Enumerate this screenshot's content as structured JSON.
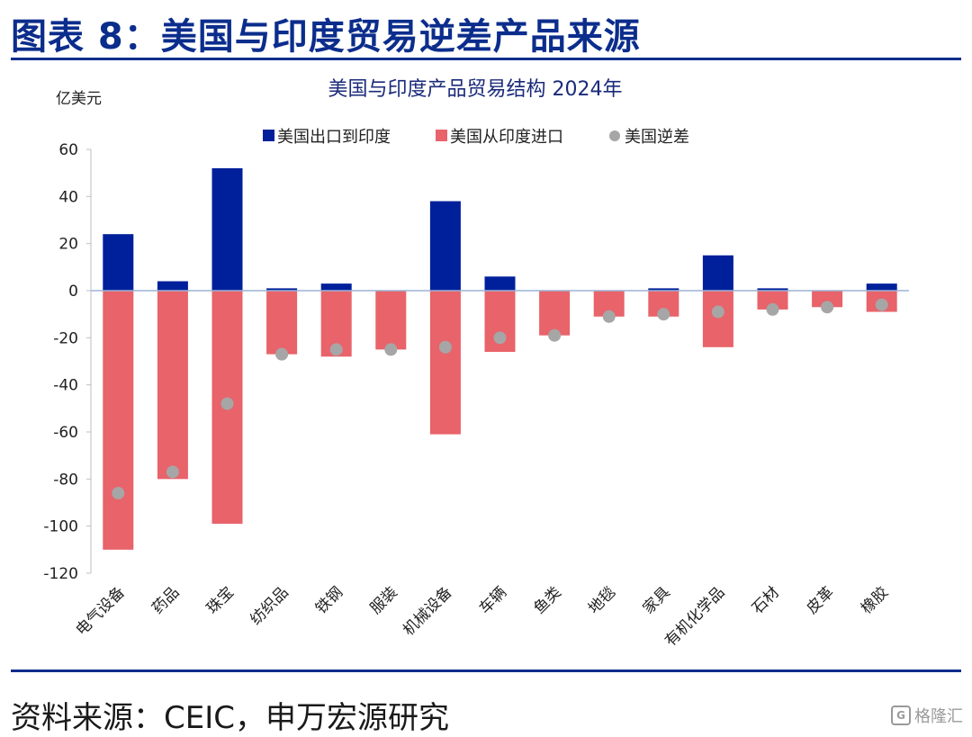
{
  "figure": {
    "title": "图表 8：美国与印度贸易逆差产品来源",
    "source": "资料来源：CEIC，申万宏源研究",
    "watermark": "格隆汇"
  },
  "colors": {
    "export": "#00209b",
    "import": "#e8636a",
    "deficit": "#a6a6a6",
    "rule": "#0b2d8c"
  },
  "chart_data": {
    "type": "bar",
    "title": "美国与印度产品贸易结构 2024年",
    "ylabel": "亿美元",
    "ylim": [
      -120,
      60
    ],
    "yticks": [
      60,
      40,
      20,
      0,
      -20,
      -40,
      -60,
      -80,
      -100,
      -120
    ],
    "legend_position": "top",
    "categories": [
      "电气设备",
      "药品",
      "珠宝",
      "纺织品",
      "铁钢",
      "服装",
      "机械设备",
      "车辆",
      "鱼类",
      "地毯",
      "家具",
      "有机化学品",
      "石材",
      "皮革",
      "橡胶"
    ],
    "series": [
      {
        "name": "美国出口到印度",
        "kind": "bar",
        "values": [
          24,
          4,
          52,
          1,
          3,
          0,
          38,
          6,
          0,
          0,
          1,
          15,
          1,
          0,
          3
        ]
      },
      {
        "name": "美国从印度进口",
        "kind": "bar",
        "values": [
          -110,
          -80,
          -99,
          -27,
          -28,
          -25,
          -61,
          -26,
          -19,
          -11,
          -11,
          -24,
          -8,
          -7,
          -9
        ]
      },
      {
        "name": "美国逆差",
        "kind": "point",
        "values": [
          -86,
          -77,
          -48,
          -27,
          -25,
          -25,
          -24,
          -20,
          -19,
          -11,
          -10,
          -9,
          -8,
          -7,
          -6
        ]
      }
    ]
  }
}
